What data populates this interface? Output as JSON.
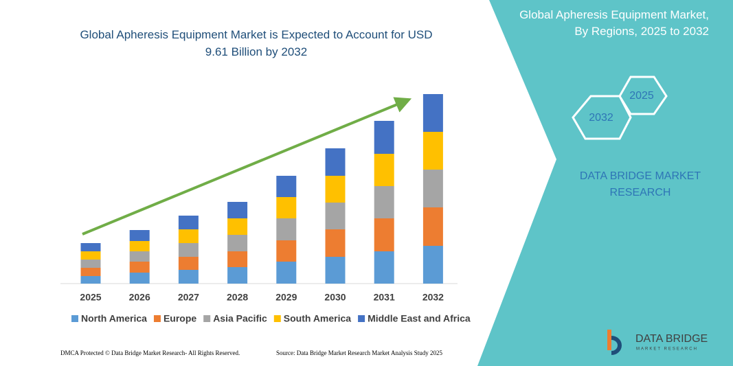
{
  "chart_data": {
    "type": "stacked_bar",
    "title": "Global Apheresis Equipment Market is Expected to Account for USD 9.61 Billion by 2032",
    "categories": [
      "2025",
      "2026",
      "2027",
      "2028",
      "2029",
      "2030",
      "2031",
      "2032"
    ],
    "series": [
      {
        "name": "North America",
        "color": "#5b9bd5",
        "values": [
          11,
          16,
          20,
          24,
          32,
          39,
          47,
          55
        ]
      },
      {
        "name": "Europe",
        "color": "#ed7d31",
        "values": [
          12,
          16,
          19,
          23,
          31,
          40,
          48,
          56
        ]
      },
      {
        "name": "Asia Pacific",
        "color": "#a5a5a5",
        "values": [
          12,
          15,
          20,
          24,
          32,
          39,
          47,
          55
        ]
      },
      {
        "name": "South America",
        "color": "#ffc000",
        "values": [
          12,
          15,
          20,
          24,
          31,
          39,
          47,
          55
        ]
      },
      {
        "name": "Middle East and Africa",
        "color": "#4472c4",
        "values": [
          12,
          16,
          20,
          24,
          31,
          40,
          48,
          55
        ]
      }
    ]
  },
  "panel": {
    "title": "Global Apheresis Equipment Market, By Regions, 2025 to 2032",
    "year_start": "2025",
    "year_end": "2032",
    "brand": "DATA BRIDGE MARKET RESEARCH"
  },
  "footer": {
    "left": "DMCA Protected © Data Bridge Market Research- All Rights Reserved.",
    "right": "Source: Data Bridge Market Research Market Analysis Study 2025"
  },
  "logo": {
    "name": "DATA BRIDGE",
    "tagline": "MARKET RESEARCH"
  }
}
